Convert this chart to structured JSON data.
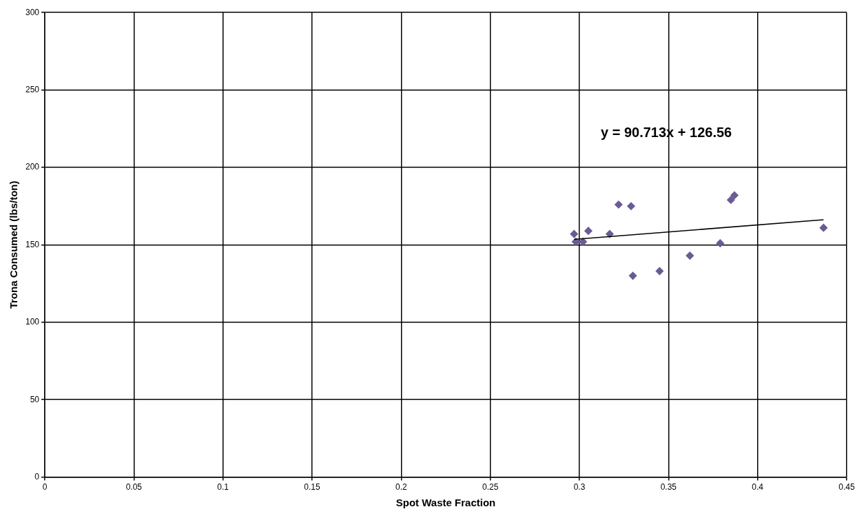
{
  "chart_data": {
    "type": "scatter",
    "xlabel": "Spot Waste Fraction",
    "ylabel": "Trona Consumed (lbs/ton)",
    "series": [
      {
        "color": "#6b5b95",
        "x": [
          0.297,
          0.298,
          0.302,
          0.305,
          0.317,
          0.322,
          0.329,
          0.33,
          0.345,
          0.362,
          0.379,
          0.385,
          0.387,
          0.437
        ],
        "values": [
          157,
          152,
          152,
          159,
          157,
          176,
          175,
          130,
          133,
          143,
          151,
          179,
          182,
          161
        ],
        "marker": "diamond"
      },
      {
        "type": "line",
        "color": "#000000",
        "x": [
          0.297,
          0.437
        ],
        "values": [
          153.5,
          166.2
        ],
        "marker": "none"
      }
    ],
    "annotations": [
      "y = 90.713x + 126.56"
    ],
    "xlim": [
      0,
      0.45
    ],
    "xticks": [
      0,
      0.05,
      0.1,
      0.15,
      0.2,
      0.25,
      0.3,
      0.35,
      0.4,
      0.45
    ],
    "ylim": [
      0,
      300
    ],
    "yticks": [
      0,
      50,
      100,
      150,
      200,
      250,
      300
    ],
    "grid": true,
    "legend": false
  }
}
